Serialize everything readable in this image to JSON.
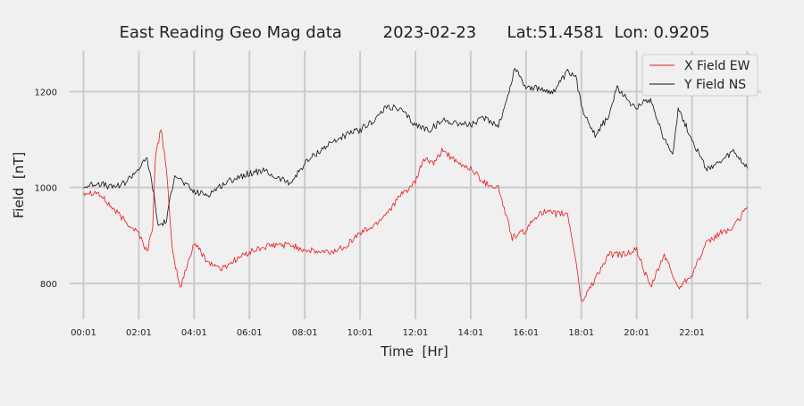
{
  "chart_data": {
    "type": "line",
    "title": "East Reading Geo Mag data        2023-02-23      Lat:51.4581  Lon: 0.9205",
    "xlabel": "Time  [Hr]",
    "ylabel": "Field  [nT]",
    "x_unit": "hours",
    "xlim": [
      -0.5,
      24.5
    ],
    "ylim": [
      725,
      1285
    ],
    "x_ticks": [
      0,
      2,
      4,
      6,
      8,
      10,
      12,
      14,
      16,
      18,
      20,
      22,
      24
    ],
    "x_tick_labels": [
      "00:01",
      "02:01",
      "04:01",
      "06:01",
      "08:01",
      "10:01",
      "12:01",
      "14:01",
      "16:01",
      "18:01",
      "20:01",
      "22:01",
      ""
    ],
    "y_ticks": [
      800,
      1000,
      1200
    ],
    "y_tick_labels": [
      "800",
      "1000",
      "1200"
    ],
    "grid": true,
    "legend_position": "top-right",
    "series": [
      {
        "name": "X Field EW",
        "color": "#e8191c",
        "x": [
          0,
          0.5,
          1,
          1.5,
          2,
          2.3,
          2.5,
          2.6,
          2.8,
          3.0,
          3.2,
          3.5,
          4.0,
          4.5,
          5.0,
          5.5,
          6.0,
          6.5,
          7.0,
          7.5,
          8.0,
          8.5,
          9.0,
          9.5,
          10.0,
          10.5,
          11.0,
          11.5,
          12.0,
          12.3,
          12.7,
          13.0,
          13.5,
          14.0,
          14.5,
          15.0,
          15.5,
          16.0,
          16.5,
          17.0,
          17.5,
          17.8,
          18.0,
          18.5,
          19.0,
          19.5,
          20.0,
          20.5,
          21.0,
          21.5,
          22.0,
          22.5,
          23.0,
          23.5,
          24.0
        ],
        "values": [
          990,
          990,
          960,
          930,
          905,
          865,
          920,
          1060,
          1125,
          1040,
          870,
          790,
          885,
          845,
          830,
          850,
          865,
          875,
          880,
          880,
          870,
          865,
          865,
          880,
          905,
          920,
          950,
          985,
          1010,
          1060,
          1050,
          1080,
          1050,
          1040,
          1010,
          1000,
          895,
          910,
          950,
          945,
          945,
          850,
          760,
          810,
          860,
          860,
          870,
          790,
          860,
          790,
          820,
          880,
          905,
          915,
          960
        ]
      },
      {
        "name": "Y Field NS",
        "color": "#111111",
        "x": [
          0,
          0.5,
          1,
          1.5,
          2,
          2.3,
          2.5,
          2.7,
          3.0,
          3.3,
          3.6,
          4.0,
          4.5,
          5.0,
          5.5,
          6.0,
          6.5,
          7.0,
          7.5,
          8.0,
          8.5,
          9.0,
          9.5,
          10.0,
          10.5,
          11.0,
          11.5,
          12.0,
          12.5,
          13.0,
          13.5,
          14.0,
          14.5,
          15.0,
          15.3,
          15.6,
          16.0,
          16.5,
          17.0,
          17.5,
          17.8,
          18.0,
          18.5,
          19.0,
          19.3,
          19.7,
          20.0,
          20.5,
          21.0,
          21.3,
          21.5,
          22.0,
          22.5,
          23.0,
          23.5,
          24.0
        ],
        "values": [
          1000,
          1010,
          1000,
          1010,
          1040,
          1060,
          1000,
          920,
          930,
          1030,
          1010,
          990,
          985,
          1005,
          1020,
          1030,
          1035,
          1020,
          1010,
          1050,
          1075,
          1095,
          1110,
          1120,
          1140,
          1170,
          1160,
          1130,
          1120,
          1140,
          1135,
          1130,
          1145,
          1130,
          1180,
          1250,
          1210,
          1205,
          1200,
          1240,
          1230,
          1170,
          1110,
          1150,
          1210,
          1180,
          1170,
          1185,
          1100,
          1070,
          1165,
          1100,
          1040,
          1050,
          1075,
          1040
        ]
      }
    ]
  }
}
